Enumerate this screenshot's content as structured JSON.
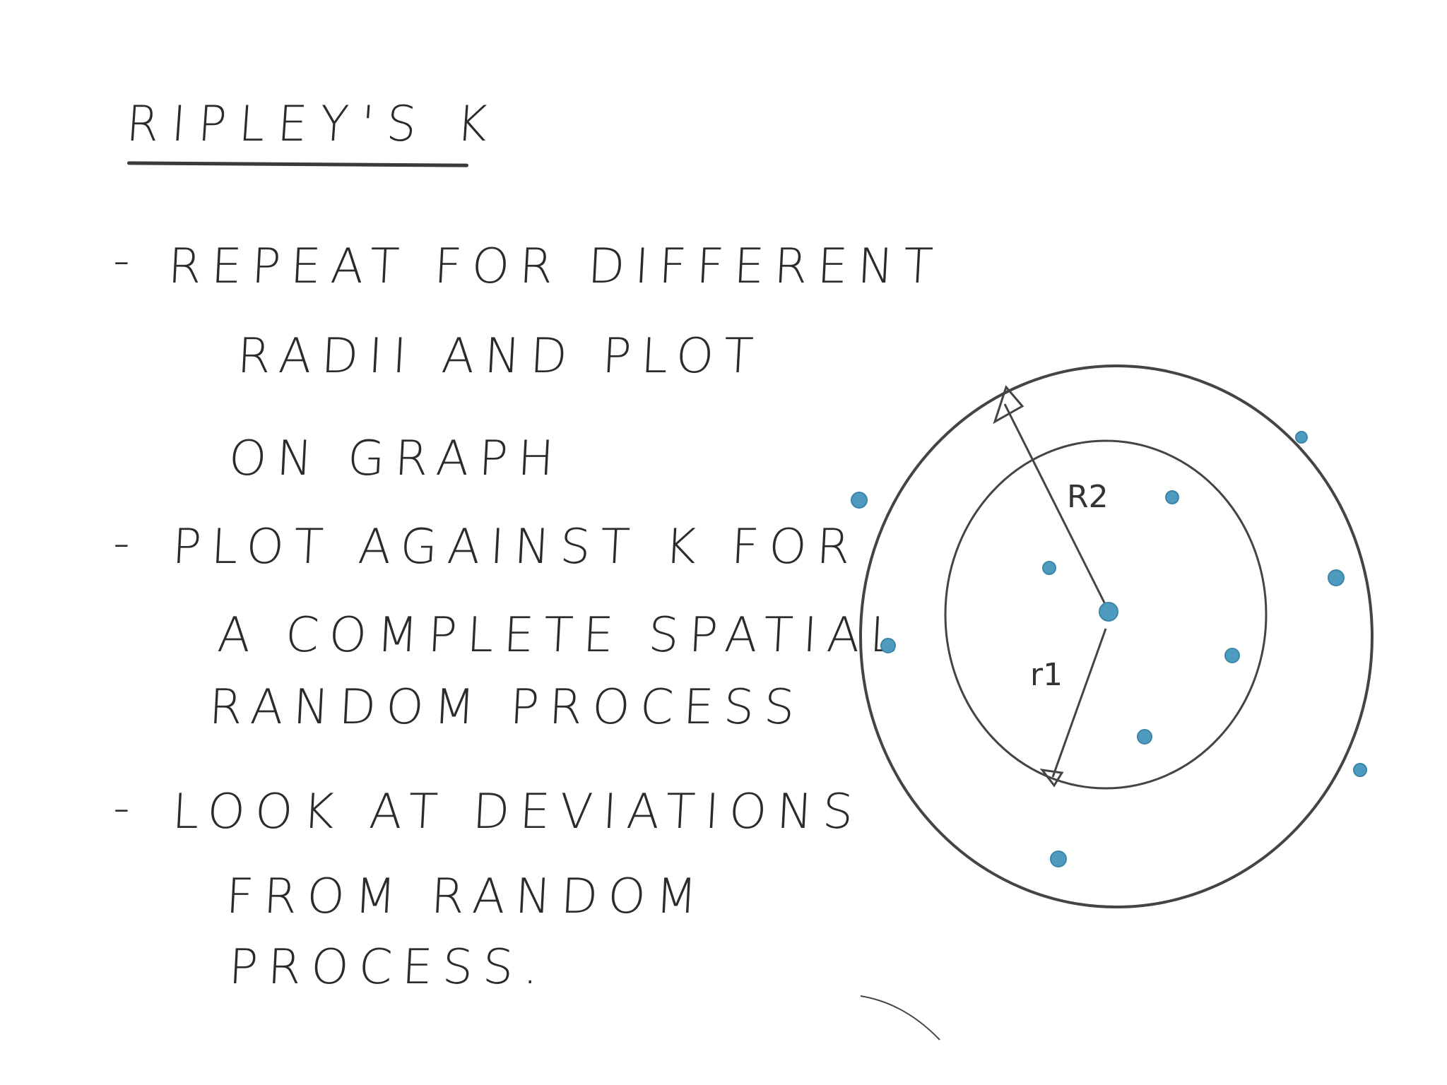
{
  "title": "RIPLEY'S K",
  "bullets": [
    {
      "dash": "-",
      "lines": [
        "REPEAT FOR DIFFERENT",
        "RADII AND PLOT",
        "ON GRAPH"
      ]
    },
    {
      "dash": "-",
      "lines": [
        "PLOT AGAINST K FOR",
        "A COMPLETE SPATIAL",
        "RANDOM PROCESS"
      ]
    },
    {
      "dash": "-",
      "lines": [
        "LOOK AT DEVIATIONS",
        "FROM RANDOM",
        "PROCESS."
      ]
    }
  ],
  "diagram": {
    "outer_radius_label": "R2",
    "inner_radius_label": "r1",
    "point_color": "#4f9bbf",
    "circle_color": "#444444"
  }
}
